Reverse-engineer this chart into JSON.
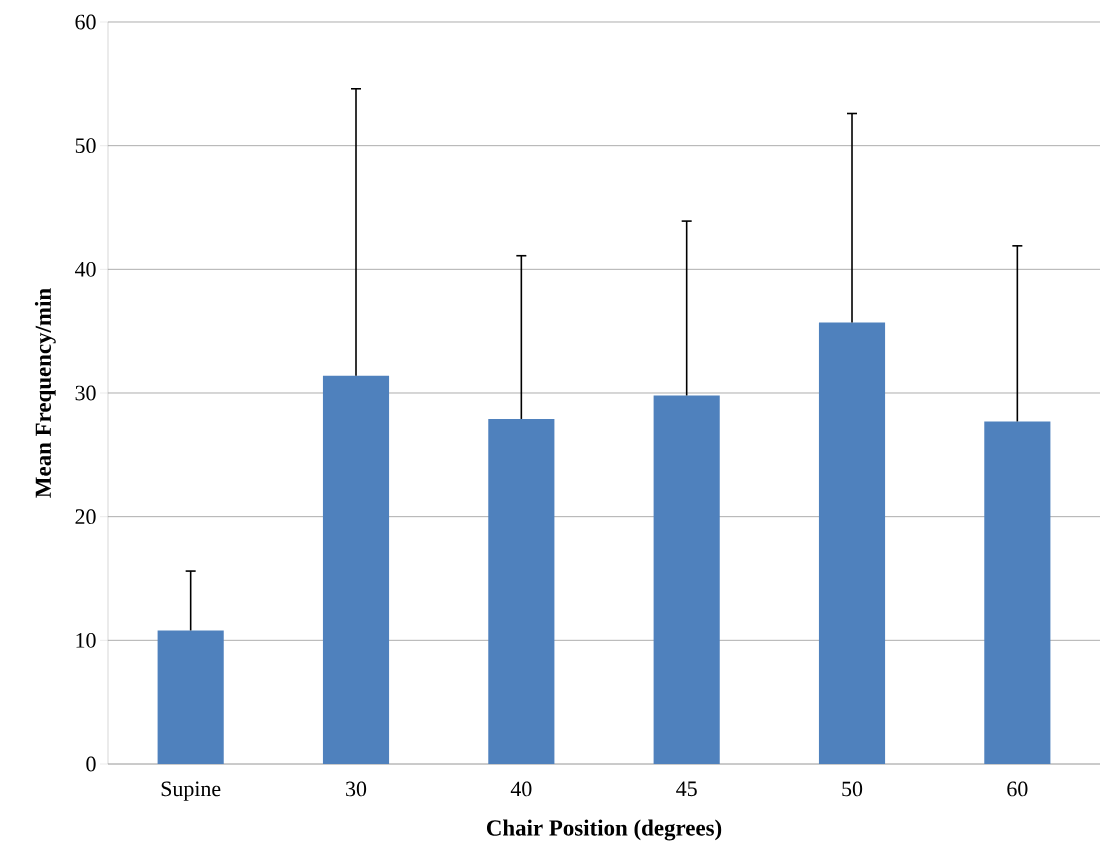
{
  "chart_data": {
    "type": "bar",
    "xlabel": "Chair Position (degrees)",
    "ylabel": "Mean Frequency/min",
    "categories": [
      "Supine",
      "30",
      "40",
      "45",
      "50",
      "60"
    ],
    "values": [
      10.8,
      31.4,
      27.9,
      29.8,
      35.7,
      27.7
    ],
    "errors": [
      [
        10.8,
        15.6
      ],
      [
        31.4,
        54.6
      ],
      [
        27.9,
        41.1
      ],
      [
        29.8,
        43.9
      ],
      [
        35.7,
        52.6
      ],
      [
        27.7,
        41.9
      ]
    ],
    "color": "#4f81bd",
    "ylim": [
      0,
      60
    ],
    "yticks": [
      0,
      10,
      20,
      30,
      40,
      50,
      60
    ],
    "grid": "y"
  }
}
